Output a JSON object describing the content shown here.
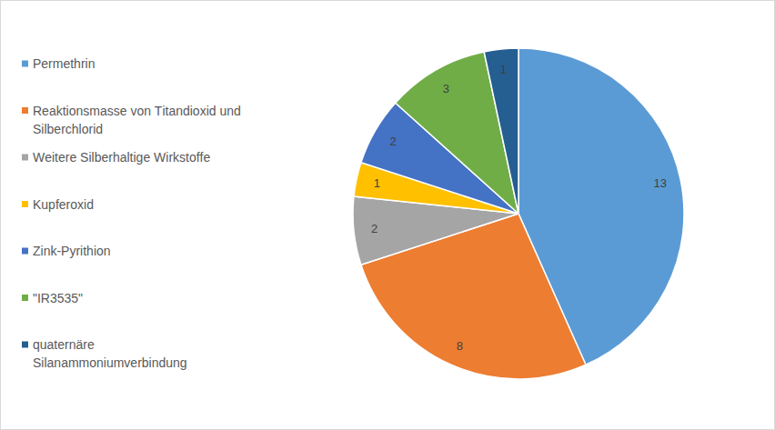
{
  "chart_data": {
    "type": "pie",
    "categories": [
      "Permethrin",
      "Reaktionsmasse von Titandioxid und Silberchlorid",
      "Weitere Silberhaltige Wirkstoffe",
      "Kupferoxid",
      "Zink-Pyrithion",
      "\"IR3535\"",
      "quaternäre Silanammoniumverbindung"
    ],
    "values": [
      13,
      8,
      2,
      1,
      2,
      3,
      1
    ],
    "colors": [
      "#5b9bd5",
      "#ed7d31",
      "#a5a5a5",
      "#ffc000",
      "#4472c4",
      "#70ad47",
      "#255e91"
    ],
    "data_labels": true,
    "legend": "left"
  }
}
